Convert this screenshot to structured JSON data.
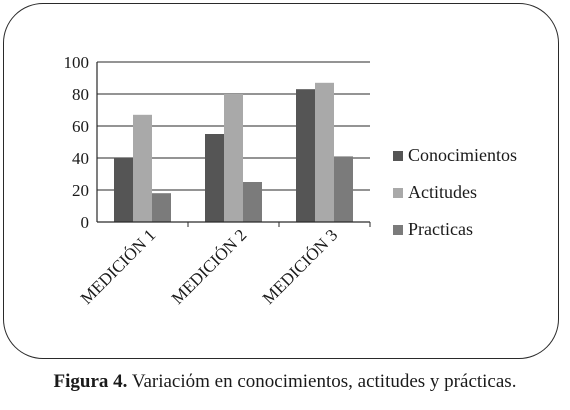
{
  "chart_data": {
    "type": "bar",
    "categories": [
      "MEDICIÓN 1",
      "MEDICIÓN 2",
      "MEDICIÓN 3"
    ],
    "series": [
      {
        "name": "Conocimientos",
        "values": [
          40,
          55,
          83
        ],
        "color": "#555555"
      },
      {
        "name": "Actitudes",
        "values": [
          67,
          80,
          87
        ],
        "color": "#a9a9a9"
      },
      {
        "name": "Practicas",
        "values": [
          18,
          25,
          41
        ],
        "color": "#7b7b7b"
      }
    ],
    "ylim": [
      0,
      100
    ],
    "yticks": [
      0,
      20,
      40,
      60,
      80,
      100
    ],
    "grid": true,
    "legend_position": "right"
  },
  "caption": {
    "label": "Figura 4.",
    "text": " Variaciόm en conocimientos, actitudes y prácticas."
  }
}
